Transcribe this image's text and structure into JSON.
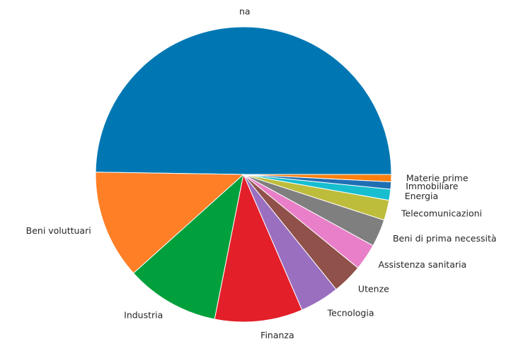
{
  "chart_data": {
    "type": "pie",
    "categories": [
      "na",
      "Beni voluttuari",
      "Industria",
      "Finanza",
      "Tecnologia",
      "Utenze",
      "Assistenza sanitaria",
      "Beni di prima necessità",
      "Telecomunicazioni",
      "Energia",
      "Immobiliare",
      "Materie prime"
    ],
    "values": [
      49.7,
      11.9,
      10.2,
      9.6,
      4.3,
      3.3,
      2.9,
      3.0,
      2.2,
      1.2,
      0.8,
      0.8
    ],
    "colors": [
      "#0077b3",
      "#ff7f27",
      "#02a03c",
      "#e31f2a",
      "#9a6fc0",
      "#8f5149",
      "#e87fc8",
      "#7f7f7f",
      "#bebc3b",
      "#17becf",
      "#1f6fb4",
      "#ff7f0e"
    ]
  }
}
